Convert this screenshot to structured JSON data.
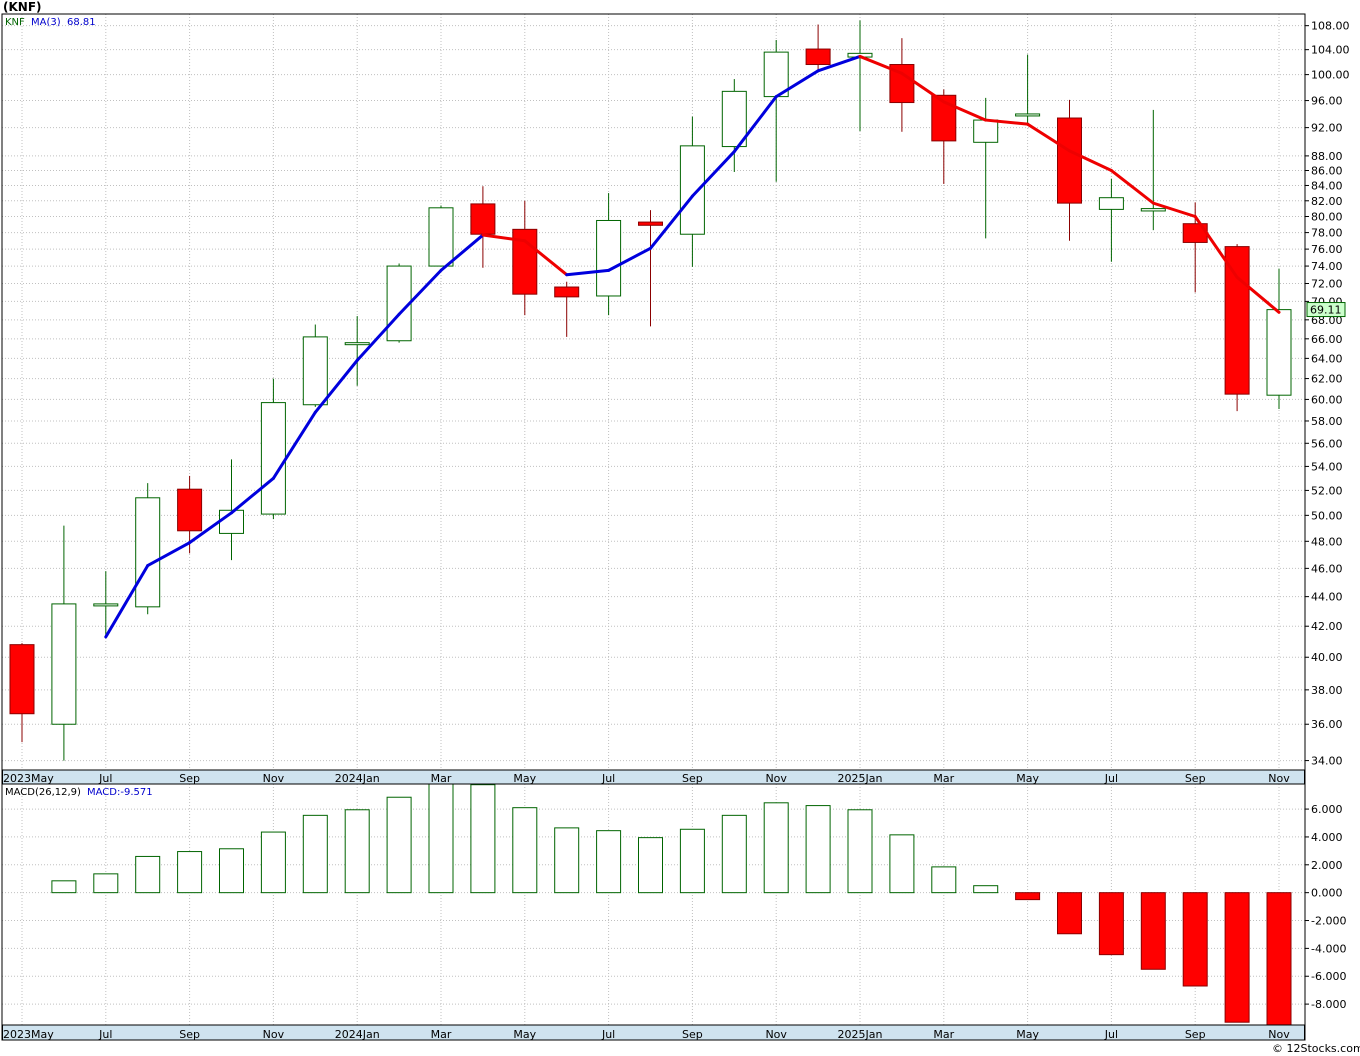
{
  "title": "(KNF)",
  "watermark": "© 12Stocks.com",
  "colors": {
    "up_body": "#ffffff",
    "up_border": "#006400",
    "down_body": "#ff0000",
    "down_wick": "#8b0000",
    "ma_up": "#0000dd",
    "ma_down": "#ee0000",
    "grid": "#c0c0c0",
    "axis_band": "#cfe3ef",
    "last_price_bg": "#ccffcc"
  },
  "chart_data": [
    {
      "type": "candlestick",
      "name": "price",
      "legend": {
        "ticker": "KNF",
        "ma_label": "MA(3)",
        "ma_value": "68.81"
      },
      "last_price_label": "69.11",
      "ylim": [
        33.5,
        110
      ],
      "y_scale": "log",
      "y_ticks": [
        "34.00",
        "36.00",
        "38.00",
        "40.00",
        "42.00",
        "44.00",
        "46.00",
        "48.00",
        "50.00",
        "52.00",
        "54.00",
        "56.00",
        "58.00",
        "60.00",
        "62.00",
        "64.00",
        "66.00",
        "68.00",
        "70.00",
        "72.00",
        "74.00",
        "76.00",
        "78.00",
        "80.00",
        "82.00",
        "84.00",
        "86.00",
        "88.00",
        "92.00",
        "96.00",
        "100.00",
        "104.00",
        "108.00"
      ],
      "x_labels": [
        "2023May",
        "Jul",
        "Sep",
        "Nov",
        "2024Jan",
        "Mar",
        "May",
        "Jul",
        "Sep",
        "Nov",
        "2025Jan",
        "Mar",
        "May",
        "Jul",
        "Sep",
        "Nov"
      ],
      "x_label_index": [
        0,
        2,
        4,
        6,
        8,
        10,
        12,
        14,
        16,
        18,
        20,
        22,
        24,
        26,
        28,
        30
      ],
      "candles": [
        {
          "o": 40.8,
          "h": 40.9,
          "l": 35.0,
          "c": 36.6
        },
        {
          "o": 36.0,
          "h": 49.2,
          "l": 34.0,
          "c": 43.5
        },
        {
          "o": 43.5,
          "h": 45.8,
          "l": 41.2,
          "c": 43.5
        },
        {
          "o": 43.3,
          "h": 52.6,
          "l": 42.8,
          "c": 51.4
        },
        {
          "o": 52.1,
          "h": 53.2,
          "l": 47.1,
          "c": 48.8
        },
        {
          "o": 48.6,
          "h": 54.6,
          "l": 46.6,
          "c": 50.4
        },
        {
          "o": 50.1,
          "h": 62.0,
          "l": 49.7,
          "c": 59.7
        },
        {
          "o": 59.5,
          "h": 67.5,
          "l": 59.3,
          "c": 66.2
        },
        {
          "o": 65.6,
          "h": 68.4,
          "l": 61.3,
          "c": 65.6
        },
        {
          "o": 65.8,
          "h": 74.3,
          "l": 65.6,
          "c": 74.0
        },
        {
          "o": 74.0,
          "h": 81.4,
          "l": 74.0,
          "c": 81.1
        },
        {
          "o": 81.6,
          "h": 83.9,
          "l": 73.8,
          "c": 77.8
        },
        {
          "o": 78.4,
          "h": 82.0,
          "l": 68.5,
          "c": 70.8
        },
        {
          "o": 71.6,
          "h": 72.2,
          "l": 66.2,
          "c": 70.5
        },
        {
          "o": 70.6,
          "h": 83.0,
          "l": 68.5,
          "c": 79.5
        },
        {
          "o": 79.3,
          "h": 80.8,
          "l": 67.3,
          "c": 78.9
        },
        {
          "o": 77.8,
          "h": 93.6,
          "l": 73.9,
          "c": 89.4
        },
        {
          "o": 89.3,
          "h": 99.3,
          "l": 85.8,
          "c": 97.4
        },
        {
          "o": 96.6,
          "h": 105.6,
          "l": 84.5,
          "c": 103.6
        },
        {
          "o": 104.1,
          "h": 108.2,
          "l": 100.5,
          "c": 101.6
        },
        {
          "o": 102.8,
          "h": 108.9,
          "l": 91.5,
          "c": 103.4
        },
        {
          "o": 101.6,
          "h": 105.9,
          "l": 91.4,
          "c": 95.7
        },
        {
          "o": 96.8,
          "h": 97.7,
          "l": 84.2,
          "c": 90.1
        },
        {
          "o": 89.9,
          "h": 96.4,
          "l": 77.3,
          "c": 93.1
        },
        {
          "o": 94.0,
          "h": 103.2,
          "l": 92.3,
          "c": 94.0
        },
        {
          "o": 93.4,
          "h": 96.1,
          "l": 77.0,
          "c": 81.7
        },
        {
          "o": 80.9,
          "h": 84.9,
          "l": 74.5,
          "c": 82.4
        },
        {
          "o": 80.7,
          "h": 94.6,
          "l": 78.3,
          "c": 81.0
        },
        {
          "o": 79.1,
          "h": 81.8,
          "l": 71.0,
          "c": 76.8
        },
        {
          "o": 76.3,
          "h": 76.6,
          "l": 58.9,
          "c": 60.5
        },
        {
          "o": 60.4,
          "h": 73.7,
          "l": 59.1,
          "c": 69.1
        }
      ],
      "ma": [
        null,
        null,
        41.3,
        46.2,
        47.9,
        50.2,
        53.0,
        58.8,
        63.8,
        68.6,
        73.5,
        77.7,
        77.0,
        73.0,
        73.5,
        76.1,
        82.6,
        88.6,
        96.6,
        100.6,
        102.9,
        100.2,
        95.8,
        93.1,
        92.5,
        88.7,
        86.0,
        81.7,
        80.0,
        72.7,
        68.81
      ]
    },
    {
      "type": "bar",
      "name": "macd",
      "legend": {
        "label": "MACD(26,12,9)",
        "value_label": "MACD:-9.571"
      },
      "ylim": [
        -9.5,
        7.8
      ],
      "y_ticks": [
        "6.000",
        "4.000",
        "2.000",
        "0.000",
        "-2.000",
        "-4.000",
        "-6.000",
        "-8.000"
      ],
      "x_labels": [
        "2023May",
        "Jul",
        "Sep",
        "Nov",
        "2024Jan",
        "Mar",
        "May",
        "Jul",
        "Sep",
        "Nov",
        "2025Jan",
        "Mar",
        "May",
        "Jul",
        "Sep",
        "Nov"
      ],
      "values": [
        null,
        0.85,
        1.35,
        2.6,
        2.95,
        3.15,
        4.35,
        5.55,
        5.95,
        6.85,
        7.95,
        7.75,
        6.1,
        4.65,
        4.45,
        3.95,
        4.55,
        5.55,
        6.45,
        6.25,
        5.95,
        4.15,
        1.85,
        0.5,
        -0.5,
        -2.95,
        -4.45,
        -5.5,
        -6.7,
        -9.3,
        -9.571
      ]
    }
  ]
}
